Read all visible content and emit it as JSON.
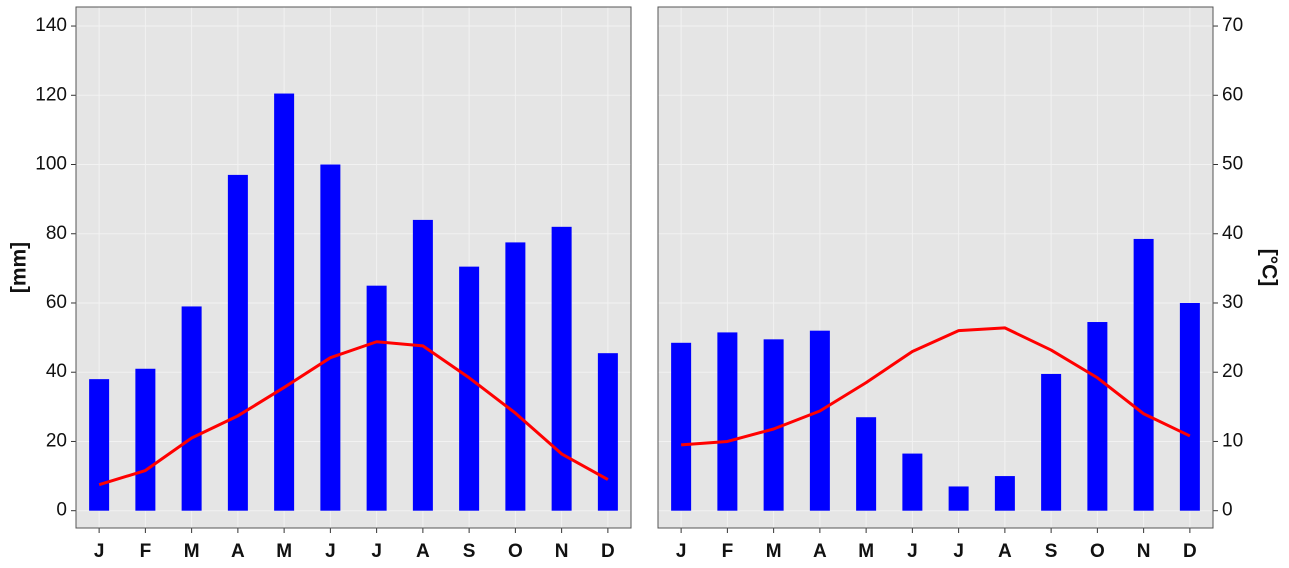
{
  "chart_data": [
    {
      "type": "bar",
      "categories": [
        "J",
        "F",
        "M",
        "A",
        "M",
        "J",
        "J",
        "A",
        "S",
        "O",
        "N",
        "D"
      ],
      "ylabel": "[mm]",
      "ylim": [
        -5,
        145.5
      ],
      "yticks": [
        0,
        20,
        40,
        60,
        80,
        100,
        120,
        140
      ],
      "y2lim": [
        -2.5,
        72.75
      ],
      "grid": true,
      "series": [
        {
          "color": "#0000ff",
          "values": [
            38,
            41,
            59,
            97,
            120.5,
            100,
            65,
            84,
            70.5,
            77.5,
            82,
            45.5
          ]
        },
        {
          "type": "line",
          "axis": "y2",
          "color": "#ff0000",
          "values": [
            3.75,
            5.8,
            10.5,
            13.7,
            17.8,
            22.1,
            24.4,
            23.8,
            19.2,
            14.1,
            8.2,
            4.5
          ]
        }
      ]
    },
    {
      "type": "bar",
      "categories": [
        "J",
        "F",
        "M",
        "A",
        "M",
        "J",
        "J",
        "A",
        "S",
        "O",
        "N",
        "D"
      ],
      "y2label": "[°C]",
      "ylim": [
        -5,
        145.5
      ],
      "y2lim": [
        -2.5,
        72.75
      ],
      "y2ticks": [
        0,
        10,
        20,
        30,
        40,
        50,
        60,
        70
      ],
      "grid": true,
      "series": [
        {
          "color": "#0000ff",
          "values": [
            48.5,
            51.5,
            49.5,
            52,
            27,
            16.5,
            7,
            10,
            39.5,
            54.5,
            78.5,
            60
          ]
        },
        {
          "type": "line",
          "axis": "y2",
          "color": "#ff0000",
          "values": [
            9.5,
            10,
            11.8,
            14.4,
            18.5,
            23,
            26,
            26.4,
            23.2,
            19.2,
            14,
            10.8
          ]
        }
      ]
    }
  ]
}
